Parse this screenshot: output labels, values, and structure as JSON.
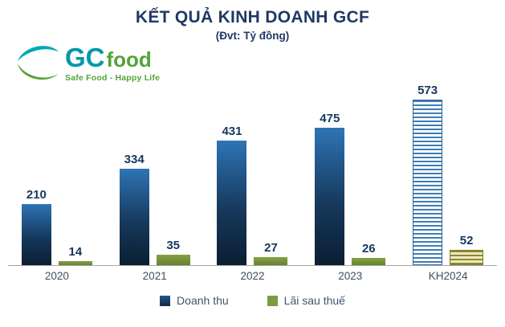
{
  "header": {
    "title": "KẾT QUẢ KINH DOANH GCF",
    "subtitle": "(Đvt: Tỷ đồng)"
  },
  "logo": {
    "gc": "GC",
    "food": "food",
    "tagline": "Safe Food - Happy Life",
    "teal_color": "#0098a9",
    "green_color": "#52a437"
  },
  "chart_data": {
    "type": "bar",
    "title": "KẾT QUẢ KINH DOANH GCF",
    "subtitle": "(Đvt: Tỷ đồng)",
    "unit": "Tỷ đồng",
    "categories": [
      "2020",
      "2021",
      "2022",
      "2023",
      "KH2024"
    ],
    "series": [
      {
        "name": "Doanh thu",
        "values": [
          210,
          334,
          431,
          475,
          573
        ],
        "color_top": "#2e74b5",
        "color_bottom": "#0b1e33"
      },
      {
        "name": "Lãi sau thuế",
        "values": [
          14,
          35,
          27,
          26,
          52
        ],
        "color": "#7d9b3f"
      }
    ],
    "ylim": [
      0,
      600
    ],
    "grid": false,
    "legend_position": "bottom",
    "style_notes": {
      "hatched_category": "KH2024",
      "value_labels": "above bars, bold navy"
    }
  }
}
